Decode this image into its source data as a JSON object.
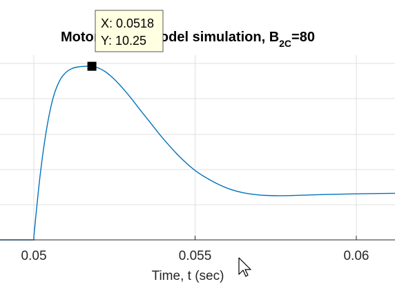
{
  "chart_data": {
    "type": "line",
    "title_prefix": "Motor+Load",
    "title_hidden_word": "model",
    "title_suffix": "l model simulation, B",
    "title_subscript": "2C",
    "title_tail": "=80",
    "xlabel": "Time, t (sec)",
    "ylabel": "",
    "x_ticks": [
      0.05,
      0.055,
      0.06
    ],
    "x_tick_labels": [
      "0.05",
      "0.055",
      "0.06"
    ],
    "xlim": [
      0.04895,
      0.0612
    ],
    "ylim": [
      0,
      10.5
    ],
    "grid": true,
    "series": [
      {
        "color": "#0072BD",
        "x": [
          0.04895,
          0.05,
          0.05,
          0.0502,
          0.0504,
          0.0506,
          0.0508,
          0.051,
          0.0512,
          0.0514,
          0.0516,
          0.0518,
          0.052,
          0.0522,
          0.0524,
          0.0526,
          0.0528,
          0.053,
          0.0533,
          0.0536,
          0.054,
          0.0545,
          0.055,
          0.0555,
          0.056,
          0.0565,
          0.057,
          0.0575,
          0.058,
          0.0585,
          0.059,
          0.06,
          0.0612
        ],
        "y": [
          0,
          0,
          0.2,
          3.9,
          6.6,
          8.4,
          9.4,
          9.9,
          10.13,
          10.22,
          10.25,
          10.25,
          10.15,
          9.95,
          9.65,
          9.28,
          8.86,
          8.4,
          7.67,
          6.95,
          6.0,
          4.95,
          4.1,
          3.5,
          3.05,
          2.78,
          2.65,
          2.61,
          2.62,
          2.65,
          2.68,
          2.72,
          2.75
        ]
      }
    ],
    "datatip": {
      "x": 0.0518,
      "y": 10.25,
      "x_text": "X: 0.0518",
      "y_text": "Y: 10.25"
    }
  }
}
